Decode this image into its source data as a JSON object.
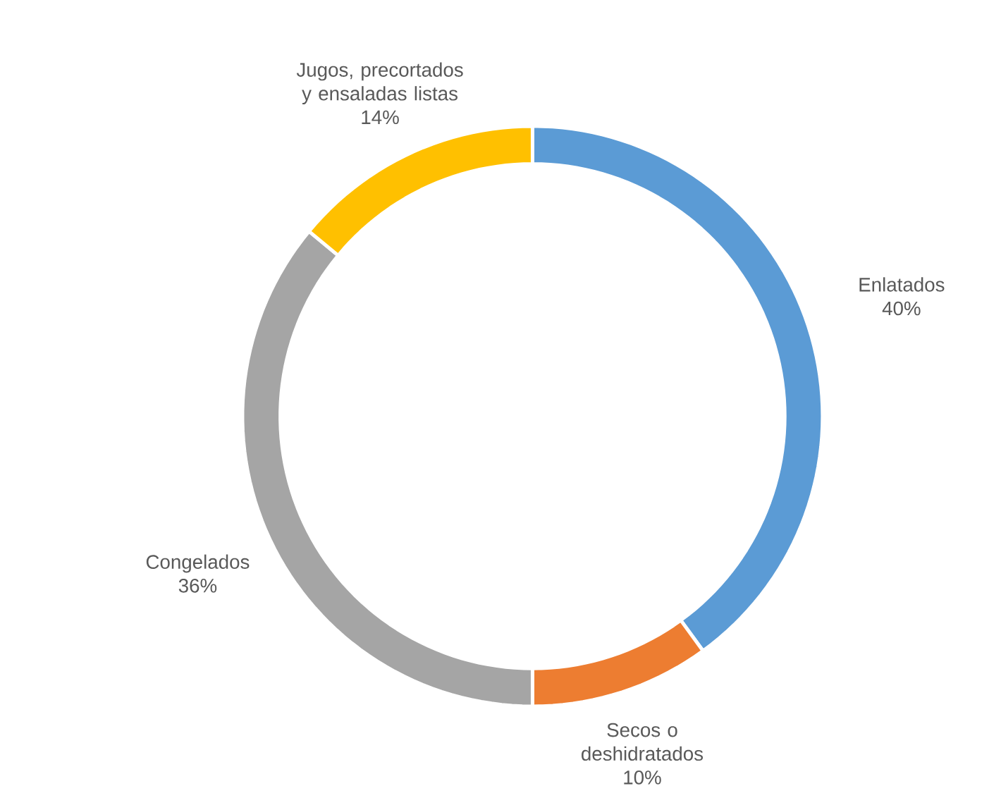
{
  "chart_data": {
    "type": "donut",
    "categories": [
      "Enlatados",
      "Secos o deshidratados",
      "Congelados",
      "Jugos, precortados y ensaladas listas"
    ],
    "values": [
      40,
      10,
      36,
      14
    ],
    "colors": [
      "#5b9bd5",
      "#ed7d31",
      "#a5a5a5",
      "#ffc000"
    ],
    "value_labels": [
      "40%",
      "10%",
      "36%",
      "14%"
    ]
  }
}
